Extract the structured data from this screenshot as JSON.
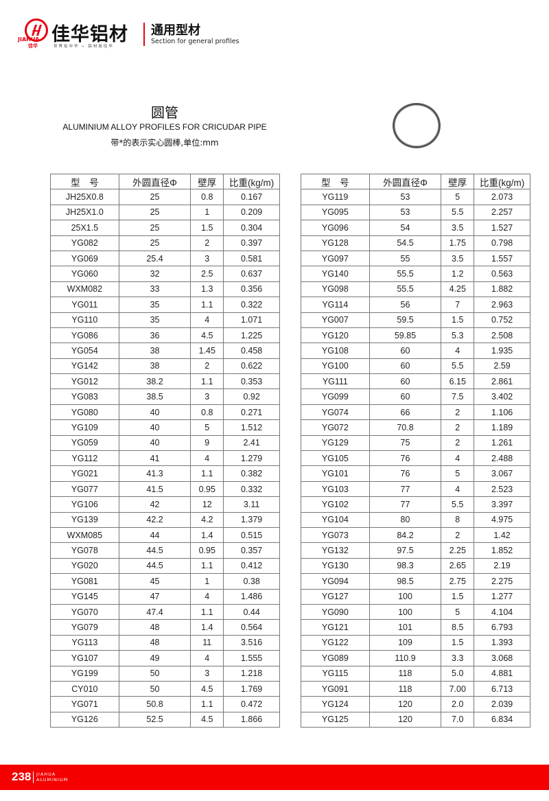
{
  "header": {
    "logo_text": "JIAHUA",
    "logo_cn": "佳华",
    "brand": "佳华铝材",
    "slogan": "世界有中华 • 铝材用佳华",
    "section_cn": "通用型材",
    "section_en": "Section for general profiles"
  },
  "title": {
    "cn": "圆管",
    "en": "ALUMINIUM ALLOY PROFILES FOR CRICUDAR PIPE",
    "note": "带*的表示实心圆棒,单位:mm"
  },
  "columns": [
    "型　号",
    "外圆直径Φ",
    "壁厚",
    "比重(kg/m)"
  ],
  "left_rows": [
    [
      "JH25X0.8",
      "25",
      "0.8",
      "0.167"
    ],
    [
      "JH25X1.0",
      "25",
      "1",
      "0.209"
    ],
    [
      "25X1.5",
      "25",
      "1.5",
      "0.304"
    ],
    [
      "YG082",
      "25",
      "2",
      "0.397"
    ],
    [
      "YG069",
      "25.4",
      "3",
      "0.581"
    ],
    [
      "YG060",
      "32",
      "2.5",
      "0.637"
    ],
    [
      "WXM082",
      "33",
      "1.3",
      "0.356"
    ],
    [
      "YG011",
      "35",
      "1.1",
      "0.322"
    ],
    [
      "YG110",
      "35",
      "4",
      "1.071"
    ],
    [
      "YG086",
      "36",
      "4.5",
      "1.225"
    ],
    [
      "YG054",
      "38",
      "1.45",
      "0.458"
    ],
    [
      "YG142",
      "38",
      "2",
      "0.622"
    ],
    [
      "YG012",
      "38.2",
      "1.1",
      "0.353"
    ],
    [
      "YG083",
      "38.5",
      "3",
      "0.92"
    ],
    [
      "YG080",
      "40",
      "0.8",
      "0.271"
    ],
    [
      "YG109",
      "40",
      "5",
      "1.512"
    ],
    [
      "YG059",
      "40",
      "9",
      "2.41"
    ],
    [
      "YG112",
      "41",
      "4",
      "1.279"
    ],
    [
      "YG021",
      "41.3",
      "1.1",
      "0.382"
    ],
    [
      "YG077",
      "41.5",
      "0.95",
      "0.332"
    ],
    [
      "YG106",
      "42",
      "12",
      "3.11"
    ],
    [
      "YG139",
      "42.2",
      "4.2",
      "1.379"
    ],
    [
      "WXM085",
      "44",
      "1.4",
      "0.515"
    ],
    [
      "YG078",
      "44.5",
      "0.95",
      "0.357"
    ],
    [
      "YG020",
      "44.5",
      "1.1",
      "0.412"
    ],
    [
      "YG081",
      "45",
      "1",
      "0.38"
    ],
    [
      "YG145",
      "47",
      "4",
      "1.486"
    ],
    [
      "YG070",
      "47.4",
      "1.1",
      "0.44"
    ],
    [
      "YG079",
      "48",
      "1.4",
      "0.564"
    ],
    [
      "YG113",
      "48",
      "11",
      "3.516"
    ],
    [
      "YG107",
      "49",
      "4",
      "1.555"
    ],
    [
      "YG199",
      "50",
      "3",
      "1.218"
    ],
    [
      "CY010",
      "50",
      "4.5",
      "1.769"
    ],
    [
      "YG071",
      "50.8",
      "1.1",
      "0.472"
    ],
    [
      "YG126",
      "52.5",
      "4.5",
      "1.866"
    ]
  ],
  "right_rows": [
    [
      "YG119",
      "53",
      "5",
      "2.073"
    ],
    [
      "YG095",
      "53",
      "5.5",
      "2.257"
    ],
    [
      "YG096",
      "54",
      "3.5",
      "1.527"
    ],
    [
      "YG128",
      "54.5",
      "1.75",
      "0.798"
    ],
    [
      "YG097",
      "55",
      "3.5",
      "1.557"
    ],
    [
      "YG140",
      "55.5",
      "1.2",
      "0.563"
    ],
    [
      "YG098",
      "55.5",
      "4.25",
      "1.882"
    ],
    [
      "YG114",
      "56",
      "7",
      "2.963"
    ],
    [
      "YG007",
      "59.5",
      "1.5",
      "0.752"
    ],
    [
      "YG120",
      "59.85",
      "5.3",
      "2.508"
    ],
    [
      "YG108",
      "60",
      "4",
      "1.935"
    ],
    [
      "YG100",
      "60",
      "5.5",
      "2.59"
    ],
    [
      "YG111",
      "60",
      "6.15",
      "2.861"
    ],
    [
      "YG099",
      "60",
      "7.5",
      "3.402"
    ],
    [
      "YG074",
      "66",
      "2",
      "1.106"
    ],
    [
      "YG072",
      "70.8",
      "2",
      "1.189"
    ],
    [
      "YG129",
      "75",
      "2",
      "1.261"
    ],
    [
      "YG105",
      "76",
      "4",
      "2.488"
    ],
    [
      "YG101",
      "76",
      "5",
      "3.067"
    ],
    [
      "YG103",
      "77",
      "4",
      "2.523"
    ],
    [
      "YG102",
      "77",
      "5.5",
      "3.397"
    ],
    [
      "YG104",
      "80",
      "8",
      "4.975"
    ],
    [
      "YG073",
      "84.2",
      "2",
      "1.42"
    ],
    [
      "YG132",
      "97.5",
      "2.25",
      "1.852"
    ],
    [
      "YG130",
      "98.3",
      "2.65",
      "2.19"
    ],
    [
      "YG094",
      "98.5",
      "2.75",
      "2.275"
    ],
    [
      "YG127",
      "100",
      "1.5",
      "1.277"
    ],
    [
      "YG090",
      "100",
      "5",
      "4.104"
    ],
    [
      "YG121",
      "101",
      "8.5",
      "6.793"
    ],
    [
      "YG122",
      "109",
      "1.5",
      "1.393"
    ],
    [
      "YG089",
      "110.9",
      "3.3",
      "3.068"
    ],
    [
      "YG115",
      "118",
      "5.0",
      "4.881"
    ],
    [
      "YG091",
      "118",
      "7.00",
      "6.713"
    ],
    [
      "YG124",
      "120",
      "2.0",
      "2.039"
    ],
    [
      "YG125",
      "120",
      "7.0",
      "6.834"
    ]
  ],
  "footer": {
    "page_number": "238",
    "brand_line1": "JIAHUA",
    "brand_line2": "ALUMINIUM",
    "color": "#f40000"
  }
}
